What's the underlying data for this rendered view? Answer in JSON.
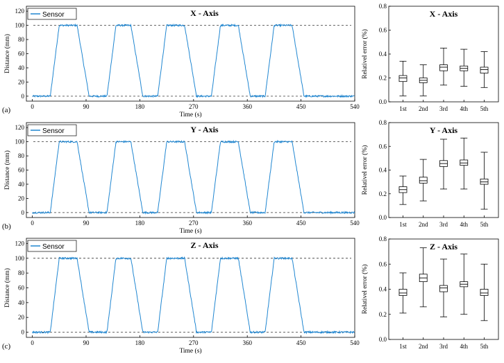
{
  "chart_data": [
    {
      "type": "line",
      "panel": "(a)",
      "title": "X - Axis",
      "xlabel": "Time (s)",
      "ylabel": "Distance (mm)",
      "xlim": [
        -10,
        540
      ],
      "ylim": [
        -7,
        127
      ],
      "xticks": [
        "0",
        "90",
        "180",
        "270",
        "360",
        "450",
        "540"
      ],
      "yticks": [
        "0",
        "20",
        "40",
        "60",
        "80",
        "100",
        "120"
      ],
      "reference_lines": [
        0,
        100
      ],
      "series": [
        {
          "name": "Sensor",
          "color": "#1f86d1",
          "cycles": [
            {
              "start": 0,
              "rise": [
                30,
                45
              ],
              "fall": [
                75,
                95
              ],
              "end": 110
            },
            {
              "start": 110,
              "rise": [
                125,
                140
              ],
              "fall": [
                165,
                185
              ],
              "end": 200
            },
            {
              "start": 200,
              "rise": [
                210,
                225
              ],
              "fall": [
                255,
                275
              ],
              "end": 290
            },
            {
              "start": 290,
              "rise": [
                300,
                315
              ],
              "fall": [
                345,
                365
              ],
              "end": 380
            },
            {
              "start": 380,
              "rise": [
                390,
                405
              ],
              "fall": [
                435,
                455
              ],
              "end": 540
            }
          ]
        }
      ]
    },
    {
      "type": "line",
      "panel": "(b)",
      "title": "Y - Axis",
      "xlabel": "Time (s)",
      "ylabel": "Distance (mm)",
      "xlim": [
        -10,
        540
      ],
      "ylim": [
        -7,
        127
      ],
      "xticks": [
        "0",
        "90",
        "180",
        "270",
        "360",
        "450",
        "540"
      ],
      "yticks": [
        "0",
        "20",
        "40",
        "60",
        "80",
        "100",
        "120"
      ],
      "reference_lines": [
        0,
        100
      ],
      "series": [
        {
          "name": "Sensor",
          "color": "#1f86d1",
          "cycles": [
            {
              "start": 0,
              "rise": [
                30,
                45
              ],
              "fall": [
                75,
                95
              ],
              "end": 110
            },
            {
              "start": 110,
              "rise": [
                125,
                140
              ],
              "fall": [
                165,
                185
              ],
              "end": 200
            },
            {
              "start": 200,
              "rise": [
                210,
                225
              ],
              "fall": [
                255,
                275
              ],
              "end": 290
            },
            {
              "start": 290,
              "rise": [
                300,
                315
              ],
              "fall": [
                345,
                365
              ],
              "end": 380
            },
            {
              "start": 380,
              "rise": [
                390,
                405
              ],
              "fall": [
                435,
                455
              ],
              "end": 540
            }
          ]
        }
      ]
    },
    {
      "type": "line",
      "panel": "(c)",
      "title": "Z - Axis",
      "xlabel": "Time (s)",
      "ylabel": "Distance (mm)",
      "xlim": [
        -10,
        540
      ],
      "ylim": [
        -7,
        127
      ],
      "xticks": [
        "0",
        "90",
        "180",
        "270",
        "360",
        "450",
        "540"
      ],
      "yticks": [
        "0",
        "20",
        "40",
        "60",
        "80",
        "100",
        "120"
      ],
      "reference_lines": [
        0,
        100
      ],
      "series": [
        {
          "name": "Sensor",
          "color": "#1f86d1",
          "cycles": [
            {
              "start": 0,
              "rise": [
                30,
                45
              ],
              "fall": [
                75,
                95
              ],
              "end": 110
            },
            {
              "start": 110,
              "rise": [
                125,
                140
              ],
              "fall": [
                165,
                185
              ],
              "end": 200
            },
            {
              "start": 200,
              "rise": [
                210,
                225
              ],
              "fall": [
                255,
                275
              ],
              "end": 290
            },
            {
              "start": 290,
              "rise": [
                300,
                315
              ],
              "fall": [
                345,
                365
              ],
              "end": 380
            },
            {
              "start": 380,
              "rise": [
                390,
                405
              ],
              "fall": [
                435,
                455
              ],
              "end": 540
            }
          ]
        }
      ]
    },
    {
      "type": "box",
      "title": "X - Axis",
      "xlabel": "",
      "ylabel": "Relativel error (%)",
      "categories": [
        "1st",
        "2nd",
        "3rd",
        "4th",
        "5th"
      ],
      "ylim": [
        0,
        0.8
      ],
      "yticks": [
        "0.0",
        "0.2",
        "0.4",
        "0.6",
        "0.8"
      ],
      "boxes": [
        {
          "min": 0.05,
          "q1": 0.17,
          "median": 0.2,
          "q3": 0.22,
          "max": 0.34
        },
        {
          "min": 0.05,
          "q1": 0.16,
          "median": 0.18,
          "q3": 0.2,
          "max": 0.31
        },
        {
          "min": 0.14,
          "q1": 0.26,
          "median": 0.29,
          "q3": 0.31,
          "max": 0.45
        },
        {
          "min": 0.13,
          "q1": 0.26,
          "median": 0.28,
          "q3": 0.3,
          "max": 0.44
        },
        {
          "min": 0.12,
          "q1": 0.24,
          "median": 0.27,
          "q3": 0.29,
          "max": 0.42
        }
      ]
    },
    {
      "type": "box",
      "title": "Y - Axis",
      "xlabel": "",
      "ylabel": "Relativel error (%)",
      "categories": [
        "1st",
        "2nd",
        "3rd",
        "4th",
        "5th"
      ],
      "ylim": [
        0,
        0.8
      ],
      "yticks": [
        "0.0",
        "0.2",
        "0.4",
        "0.6",
        "0.8"
      ],
      "boxes": [
        {
          "min": 0.11,
          "q1": 0.21,
          "median": 0.235,
          "q3": 0.26,
          "max": 0.35
        },
        {
          "min": 0.14,
          "q1": 0.29,
          "median": 0.31,
          "q3": 0.34,
          "max": 0.49
        },
        {
          "min": 0.24,
          "q1": 0.43,
          "median": 0.455,
          "q3": 0.48,
          "max": 0.66
        },
        {
          "min": 0.24,
          "q1": 0.44,
          "median": 0.46,
          "q3": 0.485,
          "max": 0.67
        },
        {
          "min": 0.07,
          "q1": 0.28,
          "median": 0.3,
          "q3": 0.325,
          "max": 0.55
        }
      ]
    },
    {
      "type": "box",
      "title": "Z - Axis",
      "xlabel": "",
      "ylabel": "Relativel error (%)",
      "categories": [
        "1st",
        "2nd",
        "3rd",
        "4th",
        "5th"
      ],
      "ylim": [
        0,
        0.8
      ],
      "yticks": [
        "0.0",
        "0.2",
        "0.4",
        "0.6",
        "0.8"
      ],
      "boxes": [
        {
          "min": 0.21,
          "q1": 0.35,
          "median": 0.37,
          "q3": 0.4,
          "max": 0.53
        },
        {
          "min": 0.26,
          "q1": 0.46,
          "median": 0.49,
          "q3": 0.52,
          "max": 0.73
        },
        {
          "min": 0.18,
          "q1": 0.38,
          "median": 0.41,
          "q3": 0.43,
          "max": 0.64
        },
        {
          "min": 0.2,
          "q1": 0.42,
          "median": 0.44,
          "q3": 0.46,
          "max": 0.68
        },
        {
          "min": 0.15,
          "q1": 0.35,
          "median": 0.37,
          "q3": 0.4,
          "max": 0.6
        }
      ]
    }
  ]
}
